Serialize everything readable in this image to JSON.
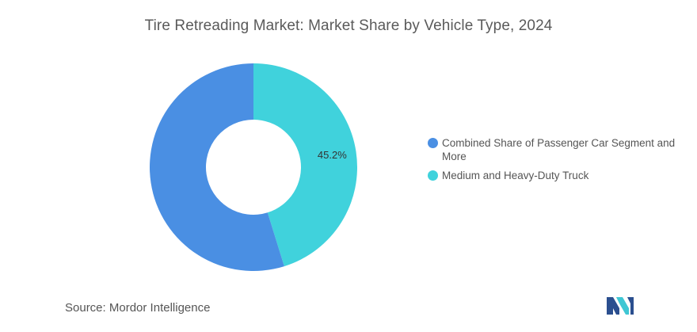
{
  "chart_data": {
    "type": "pie",
    "title": "Tire Retreading Market: Market Share by Vehicle Type, 2024",
    "donut": true,
    "series": [
      {
        "name": "Combined Share of Passenger Car Segment and More",
        "value": 54.8,
        "color": "#4a8fe3",
        "data_label": ""
      },
      {
        "name": "Medium and Heavy-Duty Truck",
        "value": 45.2,
        "color": "#40d2dc",
        "data_label": "45.2%"
      }
    ],
    "legend_position": "right"
  },
  "source": {
    "label": "Source:",
    "value": "Mordor Intelligence"
  },
  "logo": {
    "colors": [
      "#2b4f8f",
      "#3fc7d4"
    ]
  }
}
